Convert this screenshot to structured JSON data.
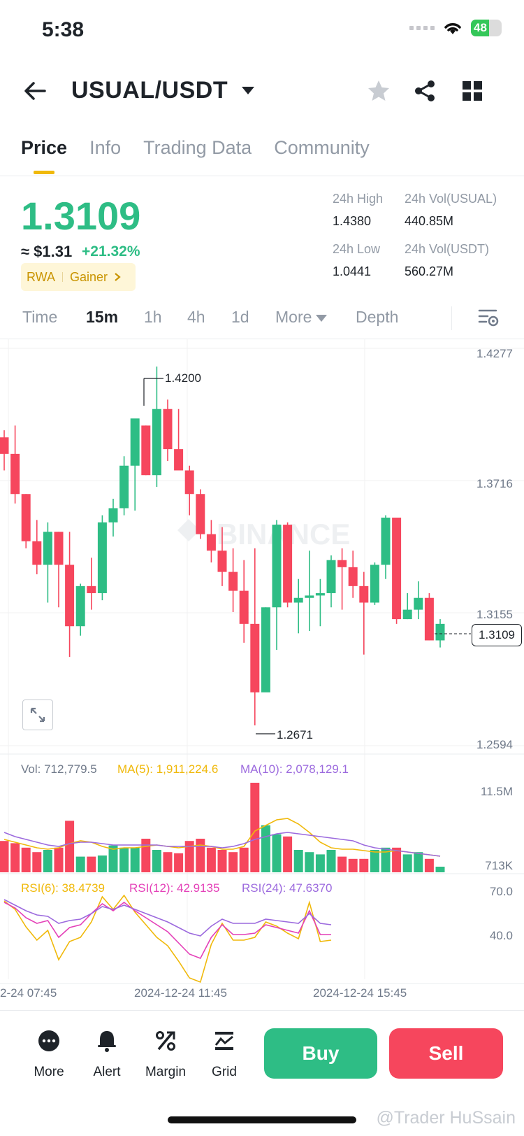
{
  "status_bar": {
    "time": "5:38",
    "battery": "48"
  },
  "header": {
    "pair": "USUAL/USDT"
  },
  "tabs": [
    "Price",
    "Info",
    "Trading Data",
    "Community"
  ],
  "price": {
    "last": "1.3109",
    "fiat": "≈ $1.31",
    "change": "+21.32%",
    "tags": [
      "RWA",
      "Gainer"
    ],
    "stats": {
      "high_label": "24h High",
      "high": "1.4380",
      "vol_base_label": "24h Vol(USUAL)",
      "vol_base": "440.85M",
      "low_label": "24h Low",
      "low": "1.0441",
      "vol_quote_label": "24h Vol(USDT)",
      "vol_quote": "560.27M"
    }
  },
  "intervals": [
    "Time",
    "15m",
    "1h",
    "4h",
    "1d",
    "More",
    "Depth"
  ],
  "chart": {
    "price_axis": [
      "1.4277",
      "1.3716",
      "1.3155",
      "1.2594"
    ],
    "high_marker": "1.4200",
    "low_marker": "1.2671",
    "current_price_tag": "1.3109",
    "watermark": "BINANCE",
    "vol_label": "Vol: 712,779.5",
    "vol_ma5": "MA(5): 1,911,224.6",
    "vol_ma10": "MA(10): 2,078,129.1",
    "vol_axis_top": "11.5M",
    "vol_axis_bottom": "713K",
    "rsi6": "RSI(6): 38.4739",
    "rsi12": "RSI(12): 42.9135",
    "rsi24": "RSI(24): 47.6370",
    "rsi_axis": [
      "70.0",
      "40.0"
    ],
    "time_axis": [
      "2-24 07:45",
      "2024-12-24 11:45",
      "2024-12-24 15:45"
    ]
  },
  "colors": {
    "up": "#2ebd85",
    "down": "#f6465d",
    "accent": "#f0b90b",
    "ma5": "#f0b90b",
    "ma10": "#9c6ade",
    "rsi12": "#e440b8"
  },
  "chart_data": {
    "type": "candlestick",
    "candles_ohlc": [
      [
        1.39,
        1.393,
        1.376,
        1.383
      ],
      [
        1.383,
        1.395,
        1.362,
        1.366
      ],
      [
        1.366,
        1.366,
        1.343,
        1.346
      ],
      [
        1.346,
        1.355,
        1.332,
        1.336
      ],
      [
        1.336,
        1.354,
        1.32,
        1.35
      ],
      [
        1.35,
        1.35,
        1.318,
        1.336
      ],
      [
        1.336,
        1.35,
        1.297,
        1.31
      ],
      [
        1.31,
        1.328,
        1.306,
        1.327
      ],
      [
        1.327,
        1.339,
        1.317,
        1.324
      ],
      [
        1.324,
        1.357,
        1.321,
        1.354
      ],
      [
        1.354,
        1.364,
        1.348,
        1.36
      ],
      [
        1.36,
        1.382,
        1.357,
        1.378
      ],
      [
        1.378,
        1.395,
        1.359,
        1.398
      ],
      [
        1.395,
        1.395,
        1.374,
        1.374
      ],
      [
        1.374,
        1.42,
        1.369,
        1.402
      ],
      [
        1.402,
        1.406,
        1.38,
        1.385
      ],
      [
        1.385,
        1.402,
        1.379,
        1.376
      ],
      [
        1.376,
        1.378,
        1.357,
        1.366
      ],
      [
        1.366,
        1.368,
        1.347,
        1.349
      ],
      [
        1.349,
        1.355,
        1.337,
        1.342
      ],
      [
        1.342,
        1.352,
        1.327,
        1.333
      ],
      [
        1.333,
        1.343,
        1.316,
        1.325
      ],
      [
        1.325,
        1.338,
        1.303,
        1.311
      ],
      [
        1.311,
        1.343,
        1.268,
        1.282
      ],
      [
        1.282,
        1.318,
        1.286,
        1.318
      ],
      [
        1.318,
        1.355,
        1.3,
        1.353
      ],
      [
        1.353,
        1.354,
        1.318,
        1.32
      ],
      [
        1.32,
        1.33,
        1.307,
        1.322
      ],
      [
        1.322,
        1.342,
        1.308,
        1.323
      ],
      [
        1.323,
        1.33,
        1.31,
        1.324
      ],
      [
        1.324,
        1.34,
        1.318,
        1.338
      ],
      [
        1.338,
        1.343,
        1.317,
        1.335
      ],
      [
        1.335,
        1.342,
        1.322,
        1.327
      ],
      [
        1.327,
        1.333,
        1.298,
        1.32
      ],
      [
        1.32,
        1.337,
        1.319,
        1.336
      ],
      [
        1.336,
        1.357,
        1.33,
        1.356
      ],
      [
        1.356,
        1.356,
        1.311,
        1.313
      ],
      [
        1.313,
        1.324,
        1.313,
        1.317
      ],
      [
        1.317,
        1.329,
        1.313,
        1.322
      ],
      [
        1.322,
        1.324,
        1.304,
        1.304
      ],
      [
        1.304,
        1.313,
        1.301,
        1.311
      ]
    ],
    "price_ylim": [
      1.2594,
      1.4277
    ],
    "volume_axis_labels": [
      "11.5M",
      "713K"
    ],
    "rsi_axis_labels": [
      "70.0",
      "40.0"
    ]
  }
}
